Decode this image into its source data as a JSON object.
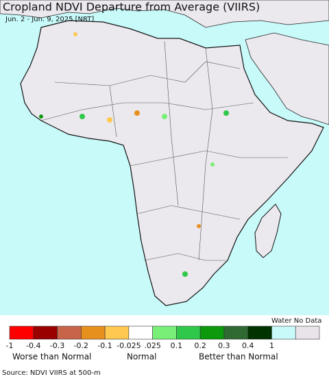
{
  "header": {
    "title": "Cropland NDVI Departure from Average (VIIRS)",
    "subtitle": "Jun. 2 - Jun. 9, 2025 [NRT]"
  },
  "legend": {
    "colors": [
      "#ff0000",
      "#990000",
      "#c8644a",
      "#e8901e",
      "#ffc850",
      "#ffffff",
      "#78f078",
      "#30c84a",
      "#0c9a0c",
      "#2f6a32",
      "#003300",
      "#c8fafa",
      "#e8e4ea"
    ],
    "labels": [
      "-1",
      "-0.4",
      "-0.3",
      "-0.2",
      "-0.1",
      "-0.025",
      ".025",
      "0.1",
      "0.2",
      "0.3",
      "0.4",
      "1"
    ],
    "water_no_data": "Water No Data",
    "worse": "Worse than Normal",
    "normal": "Normal",
    "better": "Better than Normal"
  },
  "footer": {
    "source": "Source: NDVI VIIRS at 500-m"
  }
}
